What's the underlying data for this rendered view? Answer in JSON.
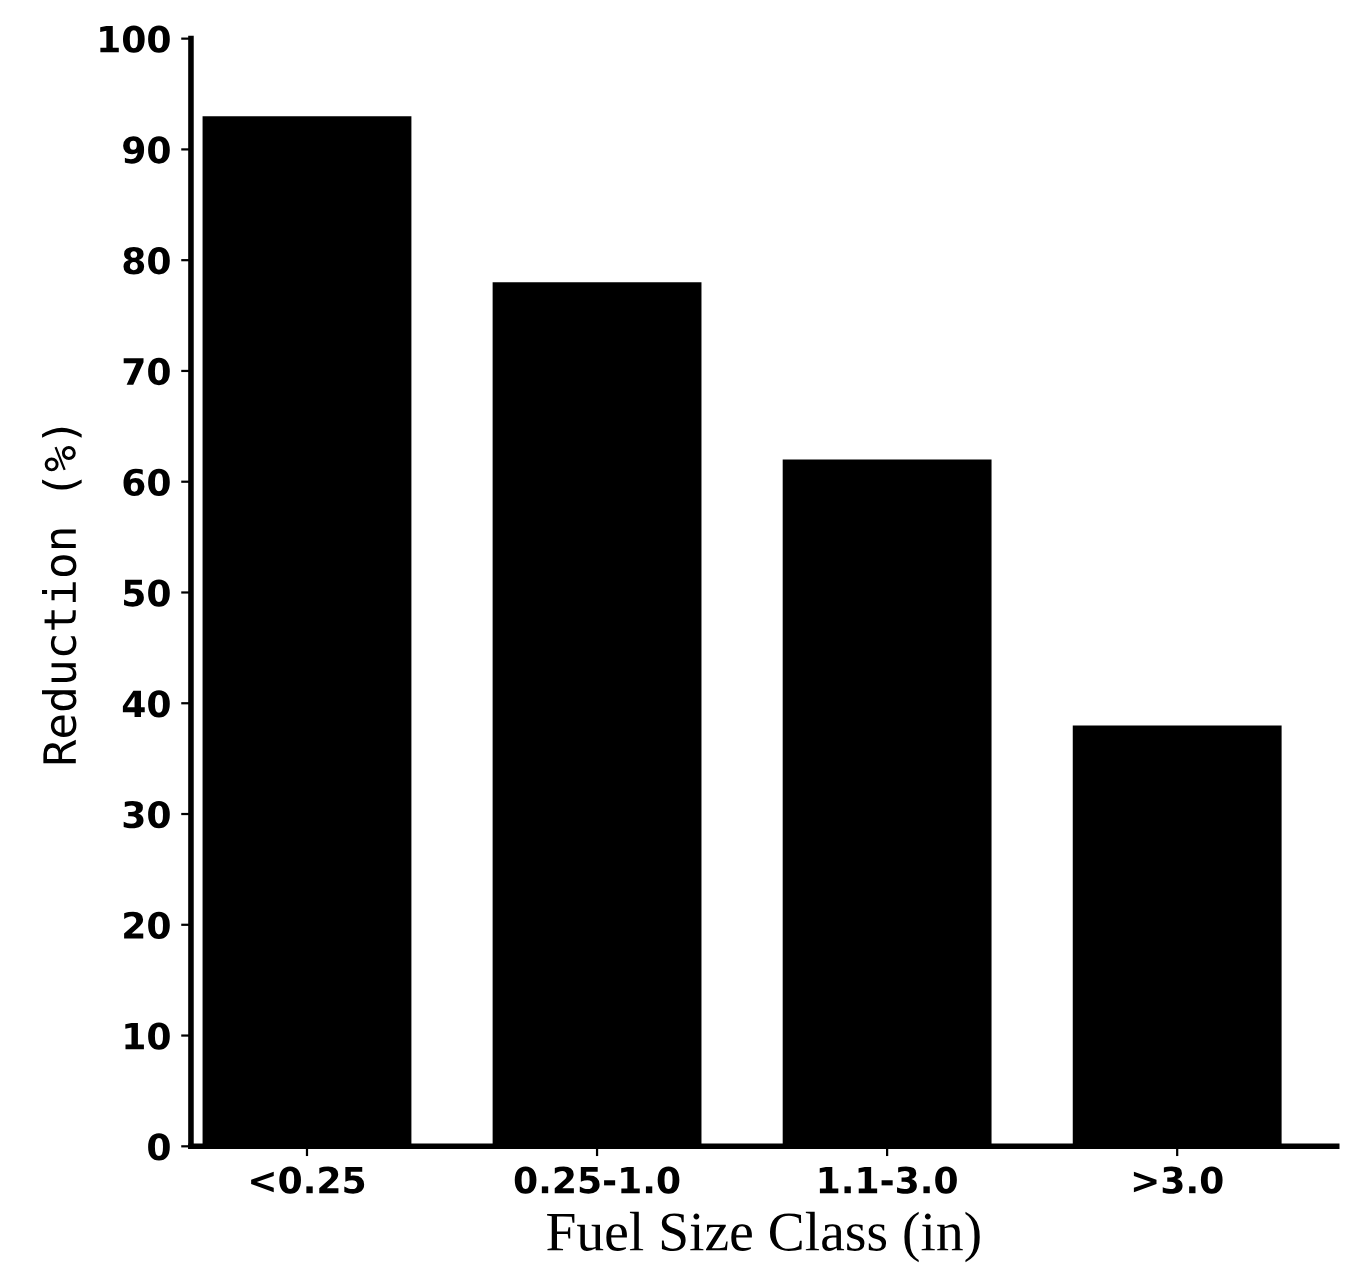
{
  "chart_data": {
    "type": "bar",
    "xlabel": "Fuel Size Class (in)",
    "ylabel": "Reduction (%)",
    "categories": [
      "<0.25",
      "0.25-1.0",
      "1.1-3.0",
      ">3.0"
    ],
    "values": [
      93,
      78,
      62,
      38
    ],
    "color": "#000000",
    "ylim": [
      0,
      100
    ],
    "yticks": [
      0,
      10,
      20,
      30,
      40,
      50,
      60,
      70,
      80,
      90,
      100
    ],
    "grid": false
  }
}
